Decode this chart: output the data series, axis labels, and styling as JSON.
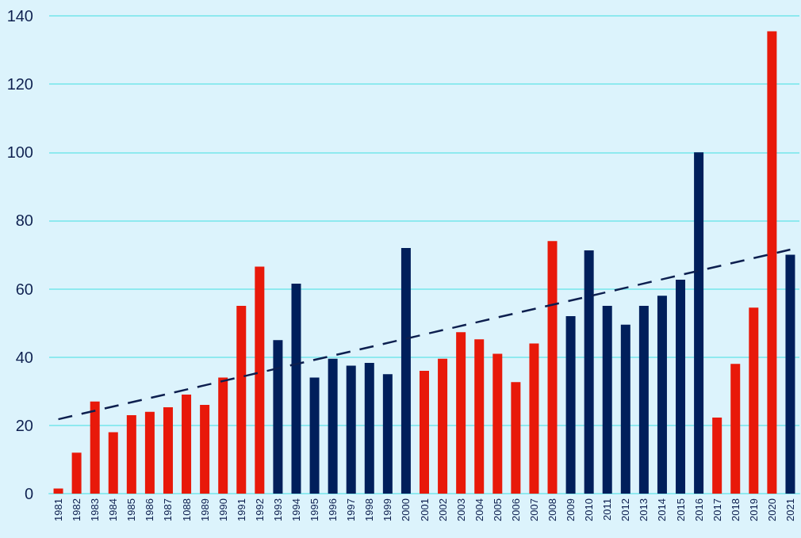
{
  "chart_data": {
    "type": "bar",
    "categories": [
      "1981",
      "1982",
      "1983",
      "1984",
      "1985",
      "1986",
      "1987",
      "1088",
      "1989",
      "1990",
      "1991",
      "1992",
      "1993",
      "1994",
      "1995",
      "1996",
      "1997",
      "1998",
      "1999",
      "2000",
      "2001",
      "2002",
      "2003",
      "2004",
      "2005",
      "2006",
      "2007",
      "2008",
      "2009",
      "2010",
      "2011",
      "2012",
      "2013",
      "2014",
      "2015",
      "2016",
      "2017",
      "2018",
      "2019",
      "2020",
      "2021"
    ],
    "series": [
      {
        "values": [
          1.5,
          12,
          27,
          18,
          23,
          24,
          25.3,
          29,
          26,
          34,
          55,
          66.5,
          45,
          61.5,
          34,
          39.5,
          37.5,
          38.3,
          35,
          72,
          36,
          39.5,
          47.3,
          45.2,
          41,
          32.7,
          44,
          74,
          52,
          71.3,
          55,
          49.5,
          55,
          58,
          62.7,
          100,
          22.3,
          38,
          54.5,
          135.5,
          70
        ],
        "colors": [
          "#e8190a",
          "#e8190a",
          "#e8190a",
          "#e8190a",
          "#e8190a",
          "#e8190a",
          "#e8190a",
          "#e8190a",
          "#e8190a",
          "#e8190a",
          "#e8190a",
          "#e8190a",
          "#001f5b",
          "#001f5b",
          "#001f5b",
          "#001f5b",
          "#001f5b",
          "#001f5b",
          "#001f5b",
          "#001f5b",
          "#e8190a",
          "#e8190a",
          "#e8190a",
          "#e8190a",
          "#e8190a",
          "#e8190a",
          "#e8190a",
          "#e8190a",
          "#001f5b",
          "#001f5b",
          "#001f5b",
          "#001f5b",
          "#001f5b",
          "#001f5b",
          "#001f5b",
          "#001f5b",
          "#e8190a",
          "#e8190a",
          "#e8190a",
          "#e8190a",
          "#001f5b"
        ]
      },
      {
        "type": "line",
        "values": [
          21.8,
          null,
          null,
          null,
          null,
          null,
          null,
          null,
          null,
          null,
          null,
          null,
          null,
          null,
          null,
          null,
          null,
          null,
          null,
          null,
          null,
          null,
          null,
          null,
          null,
          null,
          null,
          null,
          null,
          null,
          null,
          null,
          null,
          null,
          null,
          null,
          null,
          null,
          null,
          null,
          71.5
        ],
        "color": "#0d1f4f",
        "line_style": "dashed",
        "marker": "none"
      }
    ],
    "ylim": [
      0,
      140
    ],
    "yticks": [
      0,
      20,
      40,
      60,
      80,
      100,
      120,
      140
    ],
    "grid": "y"
  }
}
